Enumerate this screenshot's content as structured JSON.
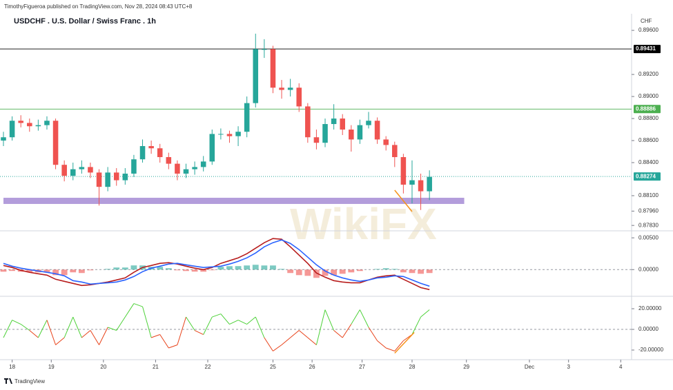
{
  "header": {
    "publisher": "TimothyFigueroa published on TradingView.com, Nov 28, 2024 08:43 UTC+8",
    "currency": "CHF",
    "watermark": "WikiFX"
  },
  "footer": {
    "brand": "TradingView"
  },
  "chart_data": [
    {
      "type": "candlestick",
      "title": "USDCHF . U.S. Dollar / Swiss Franc . 1h",
      "up_color": "#26a69a",
      "down_color": "#ef5350",
      "x": [
        0,
        4,
        8,
        12,
        16,
        20,
        24,
        28,
        32,
        36,
        40,
        44,
        48,
        52,
        56,
        60,
        64,
        68,
        72,
        76,
        80,
        84,
        88,
        92,
        96,
        100,
        104,
        108,
        112,
        116,
        120,
        124,
        128,
        132,
        136,
        140,
        144,
        148,
        152,
        156,
        160,
        164,
        168,
        172,
        176,
        180,
        184,
        188,
        192,
        196
      ],
      "open": [
        0.886,
        0.8863,
        0.8878,
        0.8876,
        0.8873,
        0.8874,
        0.8878,
        0.8838,
        0.8828,
        0.8834,
        0.8836,
        0.8831,
        0.8818,
        0.8831,
        0.8824,
        0.883,
        0.8843,
        0.8855,
        0.8853,
        0.8845,
        0.8839,
        0.883,
        0.8834,
        0.8836,
        0.8841,
        0.8866,
        0.8866,
        0.8864,
        0.8868,
        0.8894,
        0.8943,
        0.8943,
        0.8908,
        0.8906,
        0.8908,
        0.8891,
        0.8863,
        0.8858,
        0.8875,
        0.888,
        0.887,
        0.8861,
        0.8874,
        0.8878,
        0.8861,
        0.8856,
        0.8845,
        0.882,
        0.8824,
        0.8814
      ],
      "high": [
        0.8868,
        0.8882,
        0.8883,
        0.888,
        0.8879,
        0.8882,
        0.888,
        0.8842,
        0.884,
        0.8842,
        0.884,
        0.8834,
        0.8836,
        0.8835,
        0.8835,
        0.8847,
        0.8861,
        0.886,
        0.8857,
        0.8849,
        0.8842,
        0.8839,
        0.8841,
        0.8846,
        0.887,
        0.8871,
        0.8869,
        0.8873,
        0.89,
        0.8957,
        0.8952,
        0.8946,
        0.8915,
        0.8916,
        0.8912,
        0.8894,
        0.887,
        0.888,
        0.8893,
        0.8884,
        0.8874,
        0.8879,
        0.8886,
        0.8881,
        0.8864,
        0.8859,
        0.8848,
        0.8842,
        0.883,
        0.8833
      ],
      "low": [
        0.8855,
        0.886,
        0.8872,
        0.8868,
        0.8869,
        0.887,
        0.8834,
        0.8823,
        0.8824,
        0.883,
        0.8826,
        0.8801,
        0.8814,
        0.8819,
        0.882,
        0.8827,
        0.884,
        0.8848,
        0.884,
        0.8834,
        0.8824,
        0.8826,
        0.8829,
        0.8832,
        0.8838,
        0.8861,
        0.8858,
        0.8855,
        0.8863,
        0.889,
        0.8935,
        0.8903,
        0.8898,
        0.89,
        0.8886,
        0.8858,
        0.8852,
        0.8854,
        0.887,
        0.8865,
        0.885,
        0.8857,
        0.8871,
        0.8857,
        0.8851,
        0.8836,
        0.8812,
        0.8803,
        0.8797,
        0.8806
      ],
      "close": [
        0.8863,
        0.8878,
        0.8876,
        0.8873,
        0.8874,
        0.8878,
        0.8838,
        0.8828,
        0.8834,
        0.8836,
        0.8831,
        0.8818,
        0.8831,
        0.8824,
        0.883,
        0.8843,
        0.8855,
        0.8853,
        0.8845,
        0.8839,
        0.883,
        0.8834,
        0.8836,
        0.8841,
        0.8866,
        0.8866,
        0.8864,
        0.8868,
        0.8894,
        0.8943,
        0.8943,
        0.8908,
        0.8906,
        0.8908,
        0.8891,
        0.8863,
        0.8858,
        0.8875,
        0.888,
        0.887,
        0.8861,
        0.8874,
        0.8878,
        0.8861,
        0.8856,
        0.8845,
        0.882,
        0.8824,
        0.8814,
        0.8827
      ],
      "xlim": [
        0,
        289
      ],
      "ylim": [
        0.87781,
        0.89688
      ],
      "yticks": [
        {
          "value": 0.896,
          "label": "0.89600"
        },
        {
          "value": 0.892,
          "label": "0.89200"
        },
        {
          "value": 0.89,
          "label": "0.89000"
        },
        {
          "value": 0.888,
          "label": "0.88800"
        },
        {
          "value": 0.886,
          "label": "0.88600"
        },
        {
          "value": 0.884,
          "label": "0.88400"
        },
        {
          "value": 0.881,
          "label": "0.88100"
        },
        {
          "value": 0.8796,
          "label": "0.87960"
        },
        {
          "value": 0.8783,
          "label": "0.87830"
        }
      ],
      "levels": [
        {
          "value": 0.89431,
          "label": "0.89431",
          "color": "#000000",
          "style": "solid"
        },
        {
          "value": 0.88886,
          "label": "0.88886",
          "color": "#4caf50",
          "style": "solid"
        },
        {
          "value": 0.88274,
          "label": "0.88274",
          "color": "#26a69a",
          "style": "dotted"
        }
      ],
      "zone": {
        "x": [
          0,
          212
        ],
        "y": [
          0.88025,
          0.88081
        ],
        "color": "#b39ddb"
      },
      "trendline": {
        "x": [
          180,
          188
        ],
        "y": [
          0.8815,
          0.87956
        ],
        "color": "#f7931a"
      }
    },
    {
      "type": "macd",
      "x": [
        0,
        4,
        8,
        12,
        16,
        20,
        24,
        28,
        32,
        36,
        40,
        44,
        48,
        52,
        56,
        60,
        64,
        68,
        72,
        76,
        80,
        84,
        88,
        92,
        96,
        100,
        104,
        108,
        112,
        116,
        120,
        124,
        128,
        132,
        136,
        140,
        144,
        148,
        152,
        156,
        160,
        164,
        168,
        172,
        176,
        180,
        184,
        188,
        192,
        196
      ],
      "series": [
        {
          "color": "#b71c1c",
          "values": [
            0.00065,
            0.00033,
            -0.00011,
            -0.00043,
            -0.00065,
            -0.00087,
            -0.00152,
            -0.00185,
            -0.00217,
            -0.0025,
            -0.00239,
            -0.00217,
            -0.00196,
            -0.00163,
            -0.0013,
            -0.00043,
            0.00033,
            0.00065,
            0.00098,
            0.00109,
            0.00087,
            0.00054,
            0.00022,
            0,
            0.00033,
            0.00098,
            0.00141,
            0.00185,
            0.0025,
            0.00337,
            0.00424,
            0.00489,
            0.00478,
            0.00359,
            0.00228,
            0.00098,
            -0.00054,
            -0.0012,
            -0.00174,
            -0.00196,
            -0.00207,
            -0.00207,
            -0.00163,
            -0.0012,
            -0.00098,
            -0.00087,
            -0.00152,
            -0.00217,
            -0.00283,
            -0.00315
          ]
        },
        {
          "color": "#2962ff",
          "values": [
            0.00098,
            0.00054,
            0.00022,
            0,
            -0.00022,
            -0.00043,
            -0.00065,
            -0.00098,
            -0.00174,
            -0.00196,
            -0.00228,
            -0.00217,
            -0.00207,
            -0.00196,
            -0.00163,
            -0.00109,
            -0.00033,
            0.00022,
            0.00054,
            0.00087,
            0.00098,
            0.00076,
            0.00054,
            0.00033,
            0.00043,
            0.00054,
            0.00087,
            0.0013,
            0.00185,
            0.00261,
            0.00359,
            0.00424,
            0.00467,
            0.00413,
            0.00315,
            0.00196,
            0.00076,
            -0.00022,
            -0.00087,
            -0.0013,
            -0.00163,
            -0.00185,
            -0.00163,
            -0.0013,
            -0.0012,
            -0.00098,
            -0.00109,
            -0.00163,
            -0.00217,
            -0.00261
          ]
        }
      ],
      "histogram": {
        "up_color": "#26a69a",
        "down_color": "#ef5350",
        "values": [
          -0.00033,
          -0.00021,
          -0.00033,
          -0.00043,
          -0.00043,
          -0.00044,
          -0.00087,
          -0.00087,
          -0.00043,
          -0.00054,
          -0.00011,
          0,
          0.00011,
          0.00033,
          0.00033,
          0.00066,
          0.00066,
          0.00043,
          0.00044,
          0.00022,
          -0.00011,
          -0.00022,
          -0.00032,
          -0.00033,
          -0.0001,
          0.00044,
          0.00054,
          0.00055,
          0.00065,
          0.00076,
          0.00065,
          0.00065,
          0.00011,
          -0.00054,
          -0.00087,
          -0.00098,
          -0.0013,
          -0.00098,
          -0.00087,
          -0.00066,
          -0.00044,
          -0.00022,
          0,
          0.0001,
          0.00022,
          0.00011,
          -0.00043,
          -0.00054,
          -0.00066,
          -0.00054
        ]
      },
      "xlim": [
        0,
        289
      ],
      "ylim": [
        -0.0042,
        0.0061
      ],
      "yticks": [
        {
          "value": 0.005,
          "label": "0.00500"
        },
        {
          "value": 0,
          "label": "0.00000"
        }
      ]
    },
    {
      "type": "line",
      "up_color": "#4cd137",
      "down_color": "#e84118",
      "x": [
        0,
        4,
        8,
        12,
        16,
        20,
        24,
        28,
        32,
        36,
        40,
        44,
        48,
        52,
        56,
        60,
        64,
        68,
        72,
        76,
        80,
        84,
        88,
        92,
        96,
        100,
        104,
        108,
        112,
        116,
        120,
        124,
        128,
        132,
        136,
        140,
        144,
        148,
        152,
        156,
        160,
        164,
        168,
        172,
        176,
        180,
        184,
        188,
        192,
        196
      ],
      "values": [
        -8,
        9,
        5,
        -1,
        -8,
        9,
        -15,
        -8,
        12,
        -8,
        -1,
        -15,
        2,
        -1,
        12,
        25,
        22,
        -8,
        -5,
        -18,
        -15,
        12,
        -1,
        -5,
        12,
        15,
        5,
        9,
        5,
        12,
        -8,
        -21,
        -15,
        -8,
        -1,
        -8,
        -15,
        19,
        -1,
        -8,
        5,
        19,
        2,
        -11,
        -18,
        -21,
        -11,
        -5,
        12,
        19
      ],
      "trendline": {
        "x": [
          180,
          189
        ],
        "y": [
          -23,
          -3
        ],
        "color": "#f7931a"
      },
      "xlim": [
        0,
        289
      ],
      "ylim": [
        -28,
        30.7
      ],
      "yticks": [
        {
          "value": 20,
          "label": "20.00000"
        },
        {
          "value": 0,
          "label": "0.00000"
        },
        {
          "value": -20,
          "label": "-20.00000"
        }
      ],
      "xticks": [
        {
          "value": 4,
          "label": "18"
        },
        {
          "value": 22,
          "label": "19"
        },
        {
          "value": 46,
          "label": "20"
        },
        {
          "value": 70,
          "label": "21"
        },
        {
          "value": 94,
          "label": "22"
        },
        {
          "value": 124,
          "label": "25"
        },
        {
          "value": 142,
          "label": "26"
        },
        {
          "value": 165,
          "label": "27"
        },
        {
          "value": 188,
          "label": "28"
        },
        {
          "value": 213,
          "label": "29"
        },
        {
          "value": 242,
          "label": "Dec"
        },
        {
          "value": 260,
          "label": "3"
        },
        {
          "value": 284,
          "label": "4"
        }
      ]
    }
  ]
}
